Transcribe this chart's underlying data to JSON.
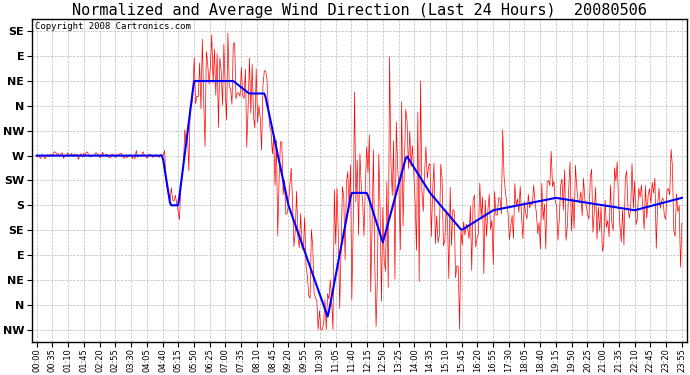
{
  "title": "Normalized and Average Wind Direction (Last 24 Hours)  20080506",
  "copyright": "Copyright 2008 Cartronics.com",
  "ytick_labels": [
    "SE",
    "E",
    "NE",
    "N",
    "NW",
    "W",
    "SW",
    "S",
    "SE",
    "E",
    "NE",
    "N",
    "NW"
  ],
  "ytick_values": [
    0,
    1,
    2,
    3,
    4,
    5,
    6,
    7,
    8,
    9,
    10,
    11,
    12
  ],
  "xtick_labels": [
    "00:00",
    "00:35",
    "01:10",
    "01:45",
    "02:20",
    "02:55",
    "03:30",
    "04:05",
    "04:40",
    "05:15",
    "05:50",
    "06:25",
    "07:00",
    "07:35",
    "08:10",
    "08:45",
    "09:20",
    "09:55",
    "10:30",
    "11:05",
    "11:40",
    "12:15",
    "12:50",
    "13:25",
    "14:00",
    "14:35",
    "15:10",
    "15:45",
    "16:20",
    "16:55",
    "17:30",
    "18:05",
    "18:40",
    "19:15",
    "19:50",
    "20:25",
    "21:00",
    "21:35",
    "22:10",
    "22:45",
    "23:20",
    "23:55"
  ],
  "background_color": "#ffffff",
  "plot_bg_color": "#ffffff",
  "grid_color": "#bbbbbb",
  "red_color": "#ff0000",
  "blue_color": "#0000ff",
  "title_fontsize": 11,
  "copyright_fontsize": 6.5,
  "tick_fontsize": 6,
  "ylabel_fontsize": 8,
  "fig_width": 6.9,
  "fig_height": 3.75,
  "dpi": 100
}
